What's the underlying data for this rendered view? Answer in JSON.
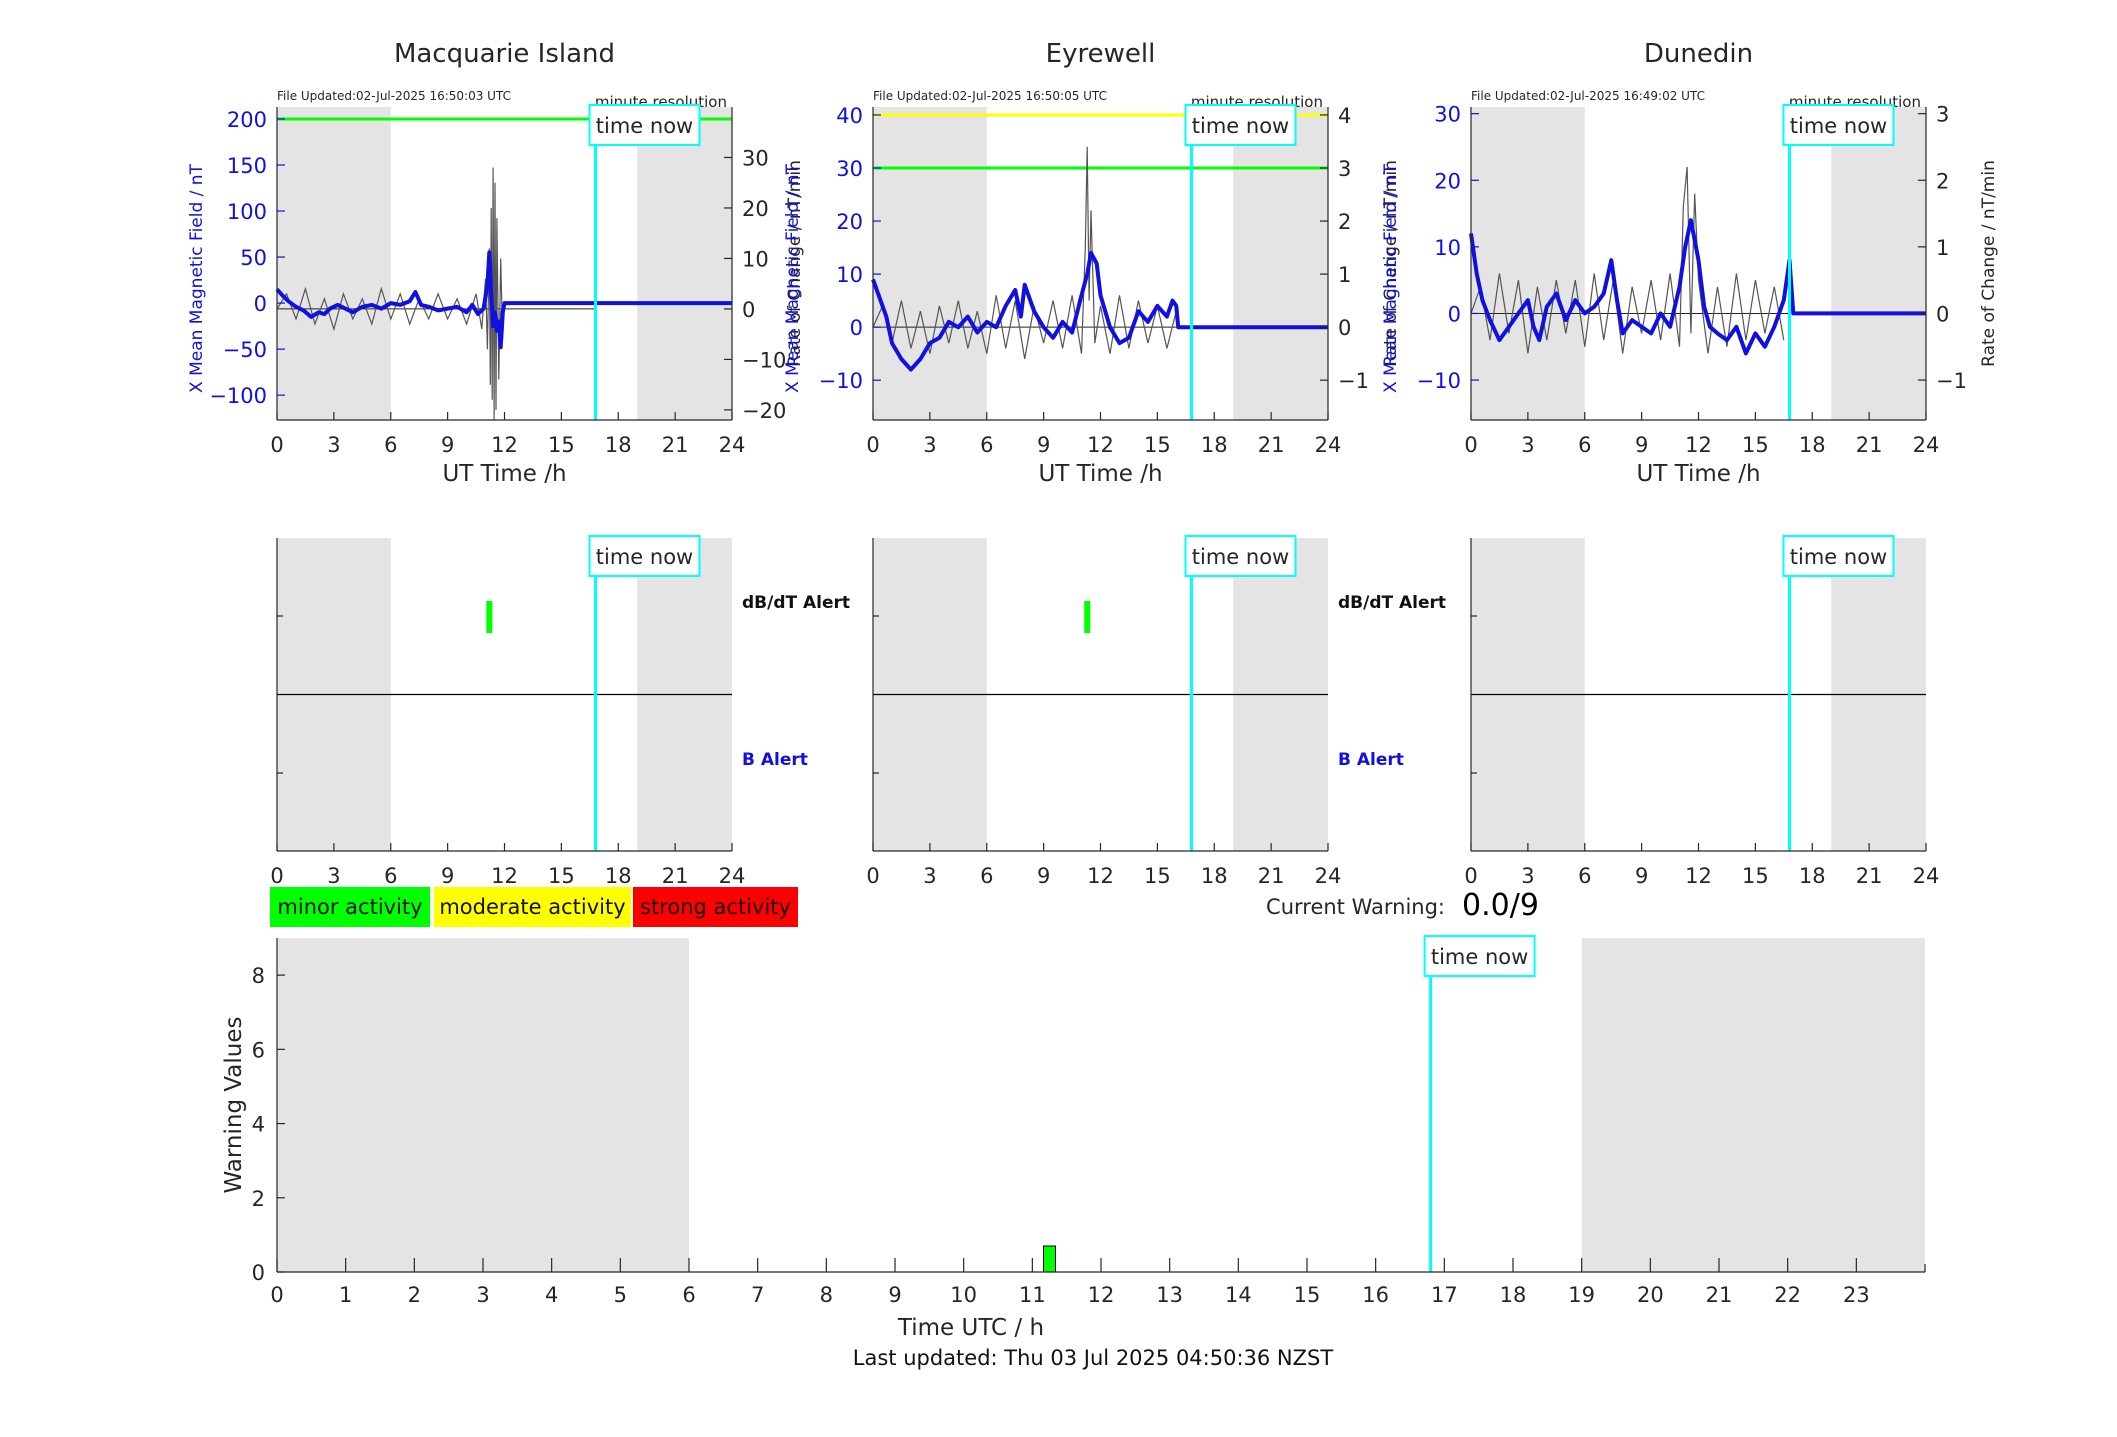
{
  "colors": {
    "b_series": "#1010e0",
    "rate_series": "#555555",
    "time_now": "#00ffff",
    "night": "#e4e4e4",
    "minor": "#00ff00",
    "moderate": "#ffff00",
    "strong": "#ff0000",
    "axis": "#262626"
  },
  "chart_data": [
    {
      "type": "line",
      "panel": "station-top",
      "station": "Macquarie Island",
      "title": "Macquarie Island",
      "file_updated": "File Updated:02-Jul-2025 16:50:03 UTC",
      "resolution": "minute resolution",
      "time_now_label": "time now",
      "time_now": 16.8,
      "night_shading": [
        [
          0,
          6
        ],
        [
          19,
          24
        ]
      ],
      "xlabel": "UT Time /h",
      "ylabel_left": "X Mean Magnetic Field / nT",
      "ylabel_right": "Rate of Change / nT/min",
      "xlim": [
        0,
        24
      ],
      "ylim_left": [
        -127,
        213
      ],
      "ylim_right": [
        -22,
        40
      ],
      "xticks": [
        0,
        3,
        6,
        9,
        12,
        15,
        18,
        21,
        24
      ],
      "yticks_left": [
        -100,
        -50,
        0,
        50,
        100,
        150,
        200
      ],
      "yticks_right": [
        -20,
        -10,
        0,
        10,
        20,
        30
      ],
      "thresholds": [
        {
          "value": 200,
          "color": "#00ff00"
        }
      ],
      "b_series": {
        "x": [
          0,
          0.3,
          0.6,
          1,
          1.4,
          1.8,
          2.2,
          2.5,
          2.8,
          3.2,
          3.6,
          4,
          4.5,
          5,
          5.5,
          6,
          6.5,
          7,
          7.3,
          7.6,
          8,
          8.5,
          9,
          9.5,
          10,
          10.3,
          10.6,
          10.9,
          11.1,
          11.2,
          11.3,
          11.4,
          11.5,
          11.6,
          11.7,
          11.8,
          11.9,
          12,
          13,
          15,
          16.8,
          18,
          21,
          24
        ],
        "y": [
          15,
          8,
          2,
          -4,
          -8,
          -15,
          -10,
          -12,
          -6,
          -2,
          -6,
          -10,
          -4,
          -2,
          -6,
          0,
          -2,
          2,
          12,
          -2,
          -4,
          -8,
          -6,
          -4,
          -10,
          -2,
          -12,
          -6,
          20,
          55,
          10,
          -25,
          -10,
          -30,
          -20,
          -48,
          -10,
          0,
          0,
          0,
          0,
          0,
          0,
          0
        ]
      },
      "rate_series": {
        "x": [
          0,
          0.5,
          1,
          1.5,
          2,
          2.5,
          3,
          3.5,
          4,
          4.5,
          5,
          5.5,
          6,
          6.5,
          7,
          7.5,
          8,
          8.5,
          9,
          9.5,
          10,
          10.5,
          10.8,
          11,
          11.1,
          11.2,
          11.25,
          11.3,
          11.35,
          11.4,
          11.45,
          11.5,
          11.55,
          11.6,
          11.7,
          11.8,
          11.9,
          12
        ],
        "y": [
          0,
          3,
          -2,
          4,
          -3,
          2,
          -4,
          3,
          -2,
          2,
          -3,
          4,
          -2,
          3,
          -3,
          2,
          -2,
          3,
          -2,
          2,
          -3,
          3,
          -4,
          6,
          -8,
          12,
          -15,
          20,
          -18,
          28,
          -22,
          25,
          -20,
          18,
          -14,
          10,
          -6,
          0
        ]
      }
    },
    {
      "type": "line",
      "panel": "station-top",
      "station": "Eyrewell",
      "title": "Eyrewell",
      "file_updated": "File Updated:02-Jul-2025 16:50:05 UTC",
      "resolution": "minute resolution",
      "time_now_label": "time now",
      "time_now": 16.8,
      "night_shading": [
        [
          0,
          6
        ],
        [
          19,
          24
        ]
      ],
      "xlabel": "UT Time /h",
      "ylabel_left": "X Mean Magnetic Field / nT",
      "ylabel_right": "Rate of Change / nT/min",
      "xlim": [
        0,
        24
      ],
      "ylim_left": [
        -17.5,
        41.5
      ],
      "ylim_right": [
        -1.75,
        4.15
      ],
      "xticks": [
        0,
        3,
        6,
        9,
        12,
        15,
        18,
        21,
        24
      ],
      "yticks_left": [
        -10,
        0,
        10,
        20,
        30,
        40
      ],
      "yticks_right": [
        -1,
        0,
        1,
        2,
        3,
        4
      ],
      "thresholds": [
        {
          "value": 40,
          "color": "#ffff00"
        },
        {
          "value": 30,
          "color": "#00ff00"
        }
      ],
      "b_series": {
        "x": [
          0,
          0.3,
          0.7,
          1,
          1.5,
          2,
          2.5,
          3,
          3.5,
          4,
          4.5,
          5,
          5.5,
          6,
          6.5,
          7,
          7.5,
          7.8,
          8,
          8.5,
          9,
          9.5,
          10,
          10.5,
          11,
          11.3,
          11.5,
          11.8,
          12,
          12.5,
          13,
          13.5,
          14,
          14.5,
          15,
          15.5,
          15.8,
          16,
          16.1,
          17,
          20,
          24
        ],
        "y": [
          9,
          6,
          2,
          -3,
          -6,
          -8,
          -6,
          -3,
          -2,
          1,
          0,
          2,
          -1,
          1,
          0,
          4,
          7,
          2,
          8,
          3,
          0,
          -2,
          1,
          -1,
          6,
          10,
          14,
          12,
          6,
          0,
          -3,
          -2,
          3,
          1,
          4,
          2,
          5,
          4,
          0,
          0,
          0,
          0
        ]
      },
      "rate_series": {
        "x": [
          0,
          0.5,
          1,
          1.5,
          2,
          2.5,
          3,
          3.5,
          4,
          4.5,
          5,
          5.5,
          6,
          6.5,
          7,
          7.5,
          8,
          8.5,
          9,
          9.5,
          10,
          10.5,
          11,
          11.2,
          11.3,
          11.4,
          11.5,
          11.7,
          12,
          12.5,
          13,
          13.5,
          14,
          14.5,
          15,
          15.5,
          16
        ],
        "y": [
          0,
          0.4,
          -0.3,
          0.5,
          -0.4,
          0.3,
          -0.5,
          0.4,
          -0.3,
          0.5,
          -0.4,
          0.3,
          -0.5,
          0.6,
          -0.4,
          0.5,
          -0.6,
          0.4,
          -0.3,
          0.5,
          -0.4,
          0.6,
          -0.5,
          1.5,
          3.4,
          0.5,
          2.2,
          -0.3,
          0.4,
          -0.5,
          0.6,
          -0.4,
          0.5,
          -0.3,
          0.4,
          -0.4,
          0.3
        ]
      }
    },
    {
      "type": "line",
      "panel": "station-top",
      "station": "Dunedin",
      "title": "Dunedin",
      "file_updated": "File Updated:02-Jul-2025 16:49:02 UTC",
      "resolution": "minute resolution",
      "time_now_label": "time now",
      "time_now": 16.8,
      "night_shading": [
        [
          0,
          6
        ],
        [
          19,
          24
        ]
      ],
      "xlabel": "UT Time /h",
      "ylabel_left": "X Mean Magnetic Field / nT",
      "ylabel_right": "Rate of Change / nT/min",
      "xlim": [
        0,
        24
      ],
      "ylim_left": [
        -16,
        31
      ],
      "ylim_right": [
        -1.6,
        3.1
      ],
      "xticks": [
        0,
        3,
        6,
        9,
        12,
        15,
        18,
        21,
        24
      ],
      "yticks_left": [
        -10,
        0,
        10,
        20,
        30
      ],
      "yticks_right": [
        -1,
        0,
        1,
        2,
        3
      ],
      "thresholds": [],
      "b_series": {
        "x": [
          0,
          0.3,
          0.6,
          1,
          1.5,
          2,
          2.5,
          3,
          3.3,
          3.6,
          4,
          4.5,
          5,
          5.5,
          6,
          6.5,
          7,
          7.4,
          7.7,
          8,
          8.5,
          9,
          9.5,
          10,
          10.5,
          11,
          11.3,
          11.6,
          12,
          12.3,
          12.6,
          13,
          13.5,
          14,
          14.5,
          15,
          15.5,
          16,
          16.5,
          16.8,
          17,
          20,
          24
        ],
        "y": [
          12,
          6,
          2,
          -1,
          -4,
          -2,
          0,
          2,
          -2,
          -4,
          1,
          3,
          -1,
          2,
          0,
          1,
          3,
          8,
          2,
          -3,
          -1,
          -2,
          -3,
          0,
          -2,
          4,
          10,
          14,
          8,
          1,
          -2,
          -3,
          -4,
          -2,
          -6,
          -3,
          -5,
          -2,
          2,
          8,
          0,
          0,
          0
        ]
      },
      "rate_series": {
        "x": [
          0,
          0.5,
          1,
          1.5,
          2,
          2.5,
          3,
          3.5,
          4,
          4.5,
          5,
          5.5,
          6,
          6.5,
          7,
          7.5,
          8,
          8.5,
          9,
          9.5,
          10,
          10.5,
          11,
          11.2,
          11.4,
          11.6,
          11.8,
          12,
          12.5,
          13,
          13.5,
          14,
          14.5,
          15,
          15.5,
          16,
          16.5
        ],
        "y": [
          0,
          0.4,
          -0.4,
          0.6,
          -0.3,
          0.5,
          -0.6,
          0.4,
          -0.4,
          0.5,
          -0.3,
          0.5,
          -0.5,
          0.6,
          -0.4,
          0.5,
          -0.6,
          0.4,
          -0.3,
          0.5,
          -0.4,
          0.6,
          -0.5,
          1.6,
          2.2,
          -0.3,
          1.8,
          0.5,
          -0.6,
          0.4,
          -0.5,
          0.6,
          -0.4,
          0.5,
          -0.3,
          0.4,
          -0.4
        ]
      }
    },
    {
      "type": "bar",
      "panel": "station-alert",
      "station": "Macquarie Island",
      "time_now_label": "time now",
      "time_now": 16.8,
      "night_shading": [
        [
          0,
          6
        ],
        [
          19,
          24
        ]
      ],
      "xlim": [
        0,
        24
      ],
      "xticks": [
        0,
        3,
        6,
        9,
        12,
        15,
        18,
        21,
        24
      ],
      "alert_labels": [
        "dB/dT Alert",
        "B Alert"
      ],
      "dbdt_alerts": [
        {
          "t": 11.2,
          "level": "minor"
        }
      ],
      "b_alerts": []
    },
    {
      "type": "bar",
      "panel": "station-alert",
      "station": "Eyrewell",
      "time_now_label": "time now",
      "time_now": 16.8,
      "night_shading": [
        [
          0,
          6
        ],
        [
          19,
          24
        ]
      ],
      "xlim": [
        0,
        24
      ],
      "xticks": [
        0,
        3,
        6,
        9,
        12,
        15,
        18,
        21,
        24
      ],
      "alert_labels": [
        "dB/dT Alert",
        "B Alert"
      ],
      "dbdt_alerts": [
        {
          "t": 11.3,
          "level": "minor"
        }
      ],
      "b_alerts": []
    },
    {
      "type": "bar",
      "panel": "station-alert",
      "station": "Dunedin",
      "time_now_label": "time now",
      "time_now": 16.8,
      "night_shading": [
        [
          0,
          6
        ],
        [
          19,
          24
        ]
      ],
      "xlim": [
        0,
        24
      ],
      "xticks": [
        0,
        3,
        6,
        9,
        12,
        15,
        18,
        21,
        24
      ],
      "alert_labels": [],
      "dbdt_alerts": [],
      "b_alerts": []
    },
    {
      "type": "bar",
      "panel": "warning",
      "time_now_label": "time now",
      "time_now": 16.8,
      "night_shading": [
        [
          0,
          6
        ],
        [
          19,
          24
        ]
      ],
      "xlabel": "Time UTC / h",
      "ylabel": "Warning Values",
      "xlim": [
        0,
        24
      ],
      "ylim": [
        0,
        9
      ],
      "xticks": [
        0,
        1,
        2,
        3,
        4,
        5,
        6,
        7,
        8,
        9,
        10,
        11,
        12,
        13,
        14,
        15,
        16,
        17,
        18,
        19,
        20,
        21,
        22,
        23
      ],
      "yticks": [
        0,
        2,
        4,
        6,
        8
      ],
      "bars": [
        {
          "x": 11.25,
          "value": 0.7,
          "level": "minor"
        }
      ]
    }
  ],
  "legend": [
    {
      "label": "minor activity",
      "level": "minor"
    },
    {
      "label": "moderate activity",
      "level": "moderate"
    },
    {
      "label": "strong activity",
      "level": "strong"
    }
  ],
  "current_warning": {
    "label": "Current Warning:",
    "value": "0.0/9"
  },
  "footer": {
    "last_updated": "Last updated: Thu 03 Jul 2025 04:50:36 NZST"
  }
}
